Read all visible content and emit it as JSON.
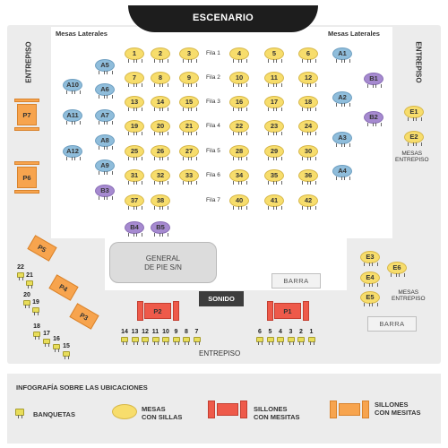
{
  "stage": "ESCENARIO",
  "labels": {
    "mesas_lat_left": "Mesas Laterales",
    "mesas_lat_right": "Mesas Laterales",
    "entrepiso_left": "ENTREPISO",
    "entrepiso_right": "ENTREPISO",
    "entrepiso_bottom": "ENTREPISO",
    "mesas_entrepiso_1": "MESAS\nENTREPISO",
    "mesas_entrepiso_2": "MESAS\nENTREPISO",
    "general": "GENERAL\nDE PIE S/N",
    "barra1": "BARRA",
    "barra2": "BARRA",
    "sonido": "SONIDO"
  },
  "filas": [
    "Fila 1",
    "Fila 2",
    "Fila 3",
    "Fila 4",
    "Fila 5",
    "Fila 6",
    "Fila 7"
  ],
  "center_left": [
    [
      "1",
      "2",
      "3"
    ],
    [
      "7",
      "8",
      "9"
    ],
    [
      "13",
      "14",
      "15"
    ],
    [
      "19",
      "20",
      "21"
    ],
    [
      "25",
      "26",
      "27"
    ],
    [
      "31",
      "32",
      "33"
    ],
    [
      "37",
      "38"
    ]
  ],
  "center_right": [
    [
      "4",
      "5",
      "6"
    ],
    [
      "10",
      "11",
      "12"
    ],
    [
      "16",
      "17",
      "18"
    ],
    [
      "22",
      "23",
      "24"
    ],
    [
      "28",
      "29",
      "30"
    ],
    [
      "34",
      "35",
      "36"
    ],
    [
      "40",
      "41",
      "42"
    ]
  ],
  "lat_left": [
    "A5",
    "A6",
    "A7",
    "A8",
    "A9",
    "A10",
    "A11",
    "A12"
  ],
  "lat_right": [
    "A1",
    "A2",
    "A3",
    "A4"
  ],
  "vip": [
    "B1",
    "B2",
    "B3",
    "B4",
    "B5"
  ],
  "entrepiso_tables": [
    "E1",
    "E2",
    "E3",
    "E4",
    "E5",
    "E6"
  ],
  "sofas_orange": [
    "P7",
    "P6",
    "P5",
    "P4",
    "P3"
  ],
  "sofas_red": [
    "P2",
    "P1"
  ],
  "stools_left": [
    "22",
    "21",
    "20",
    "19",
    "18",
    "17",
    "16",
    "15"
  ],
  "stools_bottom_left": [
    "14",
    "13",
    "12",
    "11",
    "10",
    "9",
    "8",
    "7"
  ],
  "stools_bottom_right": [
    "6",
    "5",
    "4",
    "3",
    "2",
    "1"
  ],
  "legend": {
    "title": "INFOGRAFÍA SOBRE LAS UBICACIONES",
    "banquetas": "BANQUETAS",
    "mesas": "MESAS\nCON SILLAS",
    "sillones_red": "SILLONES\nCON MESITAS",
    "sillones_orange": "SILLONES\nCON MESITAS"
  },
  "colors": {
    "mesa": "#f7dd6c",
    "lateral": "#8fbddb",
    "vip": "#a68ad0",
    "sillon_red": "#ee5a4a",
    "sillon_orange": "#f7a44e",
    "banqueta": "#e8dd5a"
  }
}
